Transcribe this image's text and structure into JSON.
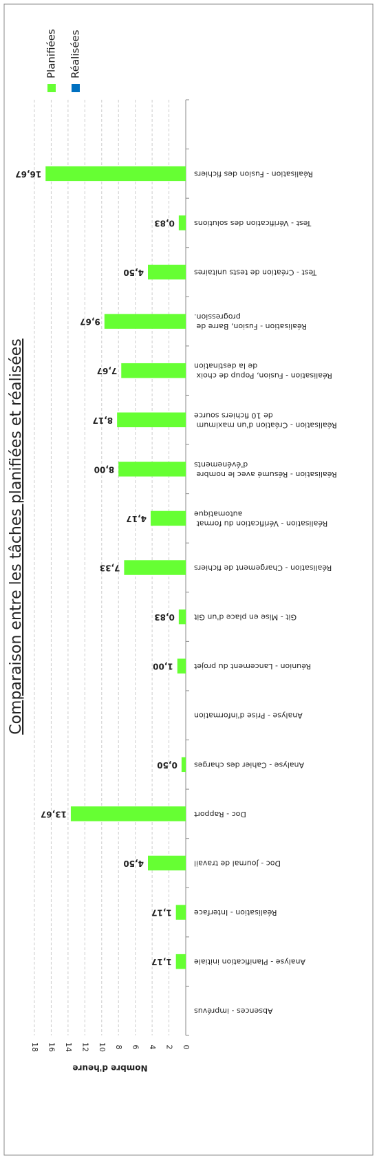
{
  "chart_data": {
    "type": "bar",
    "orientation": "horizontal",
    "title": "Comparaison entre les tâches planifiées et réalisées",
    "y_label": "Nombre d'heure",
    "categories": [
      "Absences - imprévus",
      "Analyse - Planification initiale",
      "Réalisation - Interface",
      "Doc - Journal de travail",
      "Doc - Rapport",
      "Analyse - Cahier des charges",
      "Analyse - Prise d'information",
      "Réunion - Lancement du projet",
      "Git - Mise en place d'un Git",
      "Réalisation - Chargement de fichiers",
      "Réalisation - Vérification du format automatique",
      "Réalisation - Résumé avec le nombre d'événements",
      "Réalisation - Création d'un maximum de 10 fichiers source",
      "Réalisation - Fusion, Popup de choix de la destination",
      "Réalisation - Fusion, Barre de progression.",
      "Test - Création de tests unitaires",
      "Test - Vérification des solutions",
      "Réalisation - Fusion des fichiers",
      null
    ],
    "series": [
      {
        "name": "Planifiées",
        "color": "#66ff33",
        "values": [
          null,
          1.17,
          1.17,
          4.5,
          13.67,
          0.5,
          null,
          1.0,
          0.83,
          7.33,
          4.17,
          8.0,
          8.17,
          7.67,
          9.67,
          4.5,
          0.83,
          16.67,
          null
        ],
        "value_labels": [
          null,
          "1,17",
          "1,17",
          "4,50",
          "13,67",
          "0,50",
          null,
          "1,00",
          "0,83",
          "7,33",
          "4,17",
          "8,00",
          "8,17",
          "7,67",
          "9,67",
          "4,50",
          "0,83",
          "16,67",
          null
        ]
      },
      {
        "name": "Réalisées",
        "color": "#0070c0",
        "values": [
          null,
          null,
          null,
          null,
          null,
          null,
          null,
          null,
          null,
          null,
          null,
          null,
          null,
          null,
          null,
          null,
          null,
          null,
          null
        ]
      }
    ],
    "ylim": [
      0,
      18
    ],
    "yticks": [
      0,
      2,
      4,
      6,
      8,
      10,
      12,
      14,
      16,
      18
    ],
    "grid": true,
    "legend": "top-right"
  }
}
